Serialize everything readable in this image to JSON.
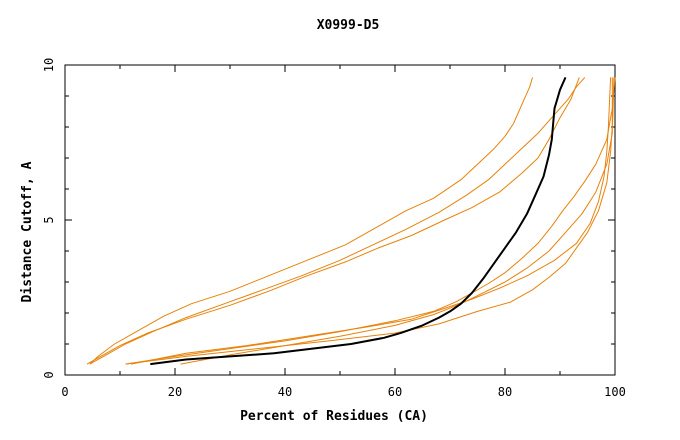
{
  "chart_data": {
    "type": "line",
    "title": "X0999-D5",
    "xlabel": "Percent of Residues (CA)",
    "ylabel": "Distance Cutoff, A",
    "xlim": [
      0,
      100
    ],
    "ylim": [
      0,
      10
    ],
    "x_ticks": [
      0,
      20,
      40,
      60,
      80,
      100
    ],
    "y_ticks": [
      0,
      5,
      10
    ],
    "grid": false,
    "legend": "none",
    "colors": {
      "highlight": "#000000",
      "others": "#e8820a"
    },
    "series": [
      {
        "highlight": true,
        "x": [
          15.5,
          22,
          30,
          38,
          45,
          52,
          58,
          61,
          65,
          68,
          70,
          72,
          74,
          76,
          78,
          80,
          82,
          84,
          85.5,
          87,
          88,
          88.5,
          88.8,
          89,
          89.5,
          90,
          91
        ],
        "y": [
          0.35,
          0.5,
          0.6,
          0.7,
          0.85,
          1.0,
          1.2,
          1.35,
          1.6,
          1.85,
          2.05,
          2.3,
          2.65,
          3.1,
          3.6,
          4.1,
          4.6,
          5.2,
          5.8,
          6.4,
          7.1,
          7.6,
          8.2,
          8.6,
          8.9,
          9.2,
          9.6
        ]
      },
      {
        "x": [
          4.5,
          6,
          9,
          13,
          18,
          23,
          30,
          37,
          44,
          51,
          57,
          62,
          67,
          72,
          75,
          78,
          80,
          81.5,
          82.5,
          83.5,
          84.5,
          85
        ],
        "y": [
          0.35,
          0.6,
          1.0,
          1.4,
          1.9,
          2.3,
          2.7,
          3.2,
          3.7,
          4.2,
          4.8,
          5.3,
          5.7,
          6.3,
          6.8,
          7.3,
          7.7,
          8.1,
          8.5,
          8.9,
          9.3,
          9.6
        ]
      },
      {
        "x": [
          4,
          6,
          10,
          15,
          22,
          30,
          37,
          44,
          51,
          57,
          63,
          69,
          74,
          79,
          83,
          86,
          88,
          90,
          92,
          93.5
        ],
        "y": [
          0.35,
          0.55,
          0.95,
          1.35,
          1.8,
          2.25,
          2.7,
          3.2,
          3.65,
          4.1,
          4.5,
          5.0,
          5.4,
          5.9,
          6.5,
          7.0,
          7.6,
          8.3,
          8.9,
          9.6
        ]
      },
      {
        "x": [
          4.5,
          7,
          11,
          16,
          22,
          29,
          36,
          43,
          50,
          56,
          62,
          68,
          73,
          77,
          80,
          83,
          86,
          89,
          91.5,
          93,
          94.5
        ],
        "y": [
          0.35,
          0.6,
          1.0,
          1.4,
          1.85,
          2.3,
          2.75,
          3.2,
          3.7,
          4.2,
          4.7,
          5.25,
          5.8,
          6.3,
          6.8,
          7.3,
          7.8,
          8.4,
          8.9,
          9.3,
          9.6
        ]
      },
      {
        "x": [
          11,
          20,
          30,
          40,
          50,
          60,
          67,
          71,
          74,
          77,
          80,
          83,
          86,
          88.5,
          90.5,
          92.5,
          94.5,
          96.5,
          98.5,
          99.5,
          100
        ],
        "y": [
          0.35,
          0.6,
          0.85,
          1.1,
          1.4,
          1.75,
          2.05,
          2.35,
          2.65,
          2.95,
          3.3,
          3.75,
          4.25,
          4.8,
          5.3,
          5.75,
          6.25,
          6.8,
          7.6,
          8.6,
          9.6
        ]
      },
      {
        "x": [
          21,
          30,
          40,
          50,
          60,
          67,
          72,
          76,
          80,
          84,
          88,
          91,
          94,
          96.5,
          98.5,
          99.5,
          99.5
        ],
        "y": [
          0.35,
          0.65,
          0.95,
          1.25,
          1.6,
          1.95,
          2.3,
          2.65,
          3.0,
          3.45,
          4.0,
          4.6,
          5.2,
          5.9,
          6.8,
          7.8,
          9.6
        ]
      },
      {
        "x": [
          12,
          22,
          33,
          44,
          55,
          63,
          69,
          74,
          79,
          84,
          89,
          93,
          95.5,
          97,
          98,
          98.5,
          98.8,
          99,
          99.2
        ],
        "y": [
          0.35,
          0.7,
          0.95,
          1.25,
          1.55,
          1.8,
          2.15,
          2.45,
          2.8,
          3.2,
          3.7,
          4.25,
          4.9,
          5.6,
          6.4,
          7.2,
          8.0,
          8.8,
          9.6
        ]
      },
      {
        "x": [
          11,
          22,
          35,
          48,
          60,
          68,
          75,
          81,
          85,
          88,
          91,
          93,
          95,
          97,
          98.5,
          99.2,
          99.6,
          99.8
        ],
        "y": [
          0.35,
          0.6,
          0.85,
          1.1,
          1.35,
          1.65,
          2.05,
          2.35,
          2.75,
          3.15,
          3.6,
          4.1,
          4.6,
          5.3,
          6.2,
          7.2,
          8.3,
          9.6
        ]
      }
    ]
  }
}
